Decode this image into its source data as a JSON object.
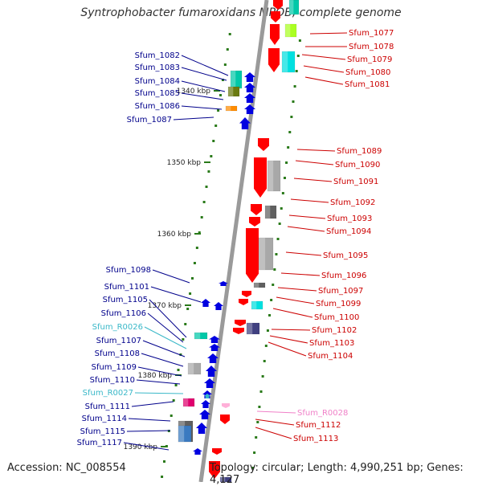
{
  "title": "Syntrophobacter fumaroxidans MPOB, complete genome",
  "footer": {
    "accession": "Accession: NC_008554",
    "topology": "Topology: circular; Length: 4,990,251 bp; Genes: 4,127"
  },
  "colors": {
    "forward_strand": "#0000e0",
    "reverse_strand": "#ff0000",
    "left_label": "#00008b",
    "right_label": "#cc0000",
    "rna_left": "#3ab8c8",
    "rna_right": "#f080c8",
    "backbone": "#9a9a9a",
    "tick": "#2a7a1a",
    "teal": "#00c8a8",
    "olive": "#6a7a10",
    "orange": "#ff8c00",
    "cyan": "#00e0e0",
    "gray": "#a8a8a8",
    "darkgray": "#606060",
    "magenta": "#e0006e",
    "steelblue": "#3a7ac0",
    "navy": "#404080",
    "lime": "#aaff22",
    "pink": "#ffb0d8"
  },
  "scale": [
    "1340 kbp",
    "1350 kbp",
    "1360 kbp",
    "1370 kbp",
    "1380 kbp",
    "1390 kbp"
  ],
  "left_genes": [
    {
      "id": "Sfum_1082",
      "type": "cds"
    },
    {
      "id": "Sfum_1083",
      "type": "cds"
    },
    {
      "id": "Sfum_1084",
      "type": "cds"
    },
    {
      "id": "Sfum_1085",
      "type": "cds"
    },
    {
      "id": "Sfum_1086",
      "type": "cds"
    },
    {
      "id": "Sfum_1087",
      "type": "cds"
    },
    {
      "id": "Sfum_1098",
      "type": "cds"
    },
    {
      "id": "Sfum_1101",
      "type": "cds"
    },
    {
      "id": "Sfum_1105",
      "type": "cds"
    },
    {
      "id": "Sfum_1106",
      "type": "cds"
    },
    {
      "id": "Sfum_R0026",
      "type": "rna"
    },
    {
      "id": "Sfum_1107",
      "type": "cds"
    },
    {
      "id": "Sfum_1108",
      "type": "cds"
    },
    {
      "id": "Sfum_1109",
      "type": "cds"
    },
    {
      "id": "Sfum_1110",
      "type": "cds"
    },
    {
      "id": "Sfum_R0027",
      "type": "rna"
    },
    {
      "id": "Sfum_1111",
      "type": "cds"
    },
    {
      "id": "Sfum_1114",
      "type": "cds"
    },
    {
      "id": "Sfum_1115",
      "type": "cds"
    },
    {
      "id": "Sfum_1117",
      "type": "cds"
    }
  ],
  "right_genes": [
    {
      "id": "Sfum_1077",
      "type": "cds"
    },
    {
      "id": "Sfum_1078",
      "type": "cds"
    },
    {
      "id": "Sfum_1079",
      "type": "cds"
    },
    {
      "id": "Sfum_1080",
      "type": "cds"
    },
    {
      "id": "Sfum_1081",
      "type": "cds"
    },
    {
      "id": "Sfum_1089",
      "type": "cds"
    },
    {
      "id": "Sfum_1090",
      "type": "cds"
    },
    {
      "id": "Sfum_1091",
      "type": "cds"
    },
    {
      "id": "Sfum_1092",
      "type": "cds"
    },
    {
      "id": "Sfum_1093",
      "type": "cds"
    },
    {
      "id": "Sfum_1094",
      "type": "cds"
    },
    {
      "id": "Sfum_1095",
      "type": "cds"
    },
    {
      "id": "Sfum_1096",
      "type": "cds"
    },
    {
      "id": "Sfum_1097",
      "type": "cds"
    },
    {
      "id": "Sfum_1099",
      "type": "cds"
    },
    {
      "id": "Sfum_1100",
      "type": "cds"
    },
    {
      "id": "Sfum_1102",
      "type": "cds"
    },
    {
      "id": "Sfum_1103",
      "type": "cds"
    },
    {
      "id": "Sfum_1104",
      "type": "cds"
    },
    {
      "id": "Sfum_R0028",
      "type": "rna"
    },
    {
      "id": "Sfum_1112",
      "type": "cds"
    },
    {
      "id": "Sfum_1113",
      "type": "cds"
    }
  ]
}
